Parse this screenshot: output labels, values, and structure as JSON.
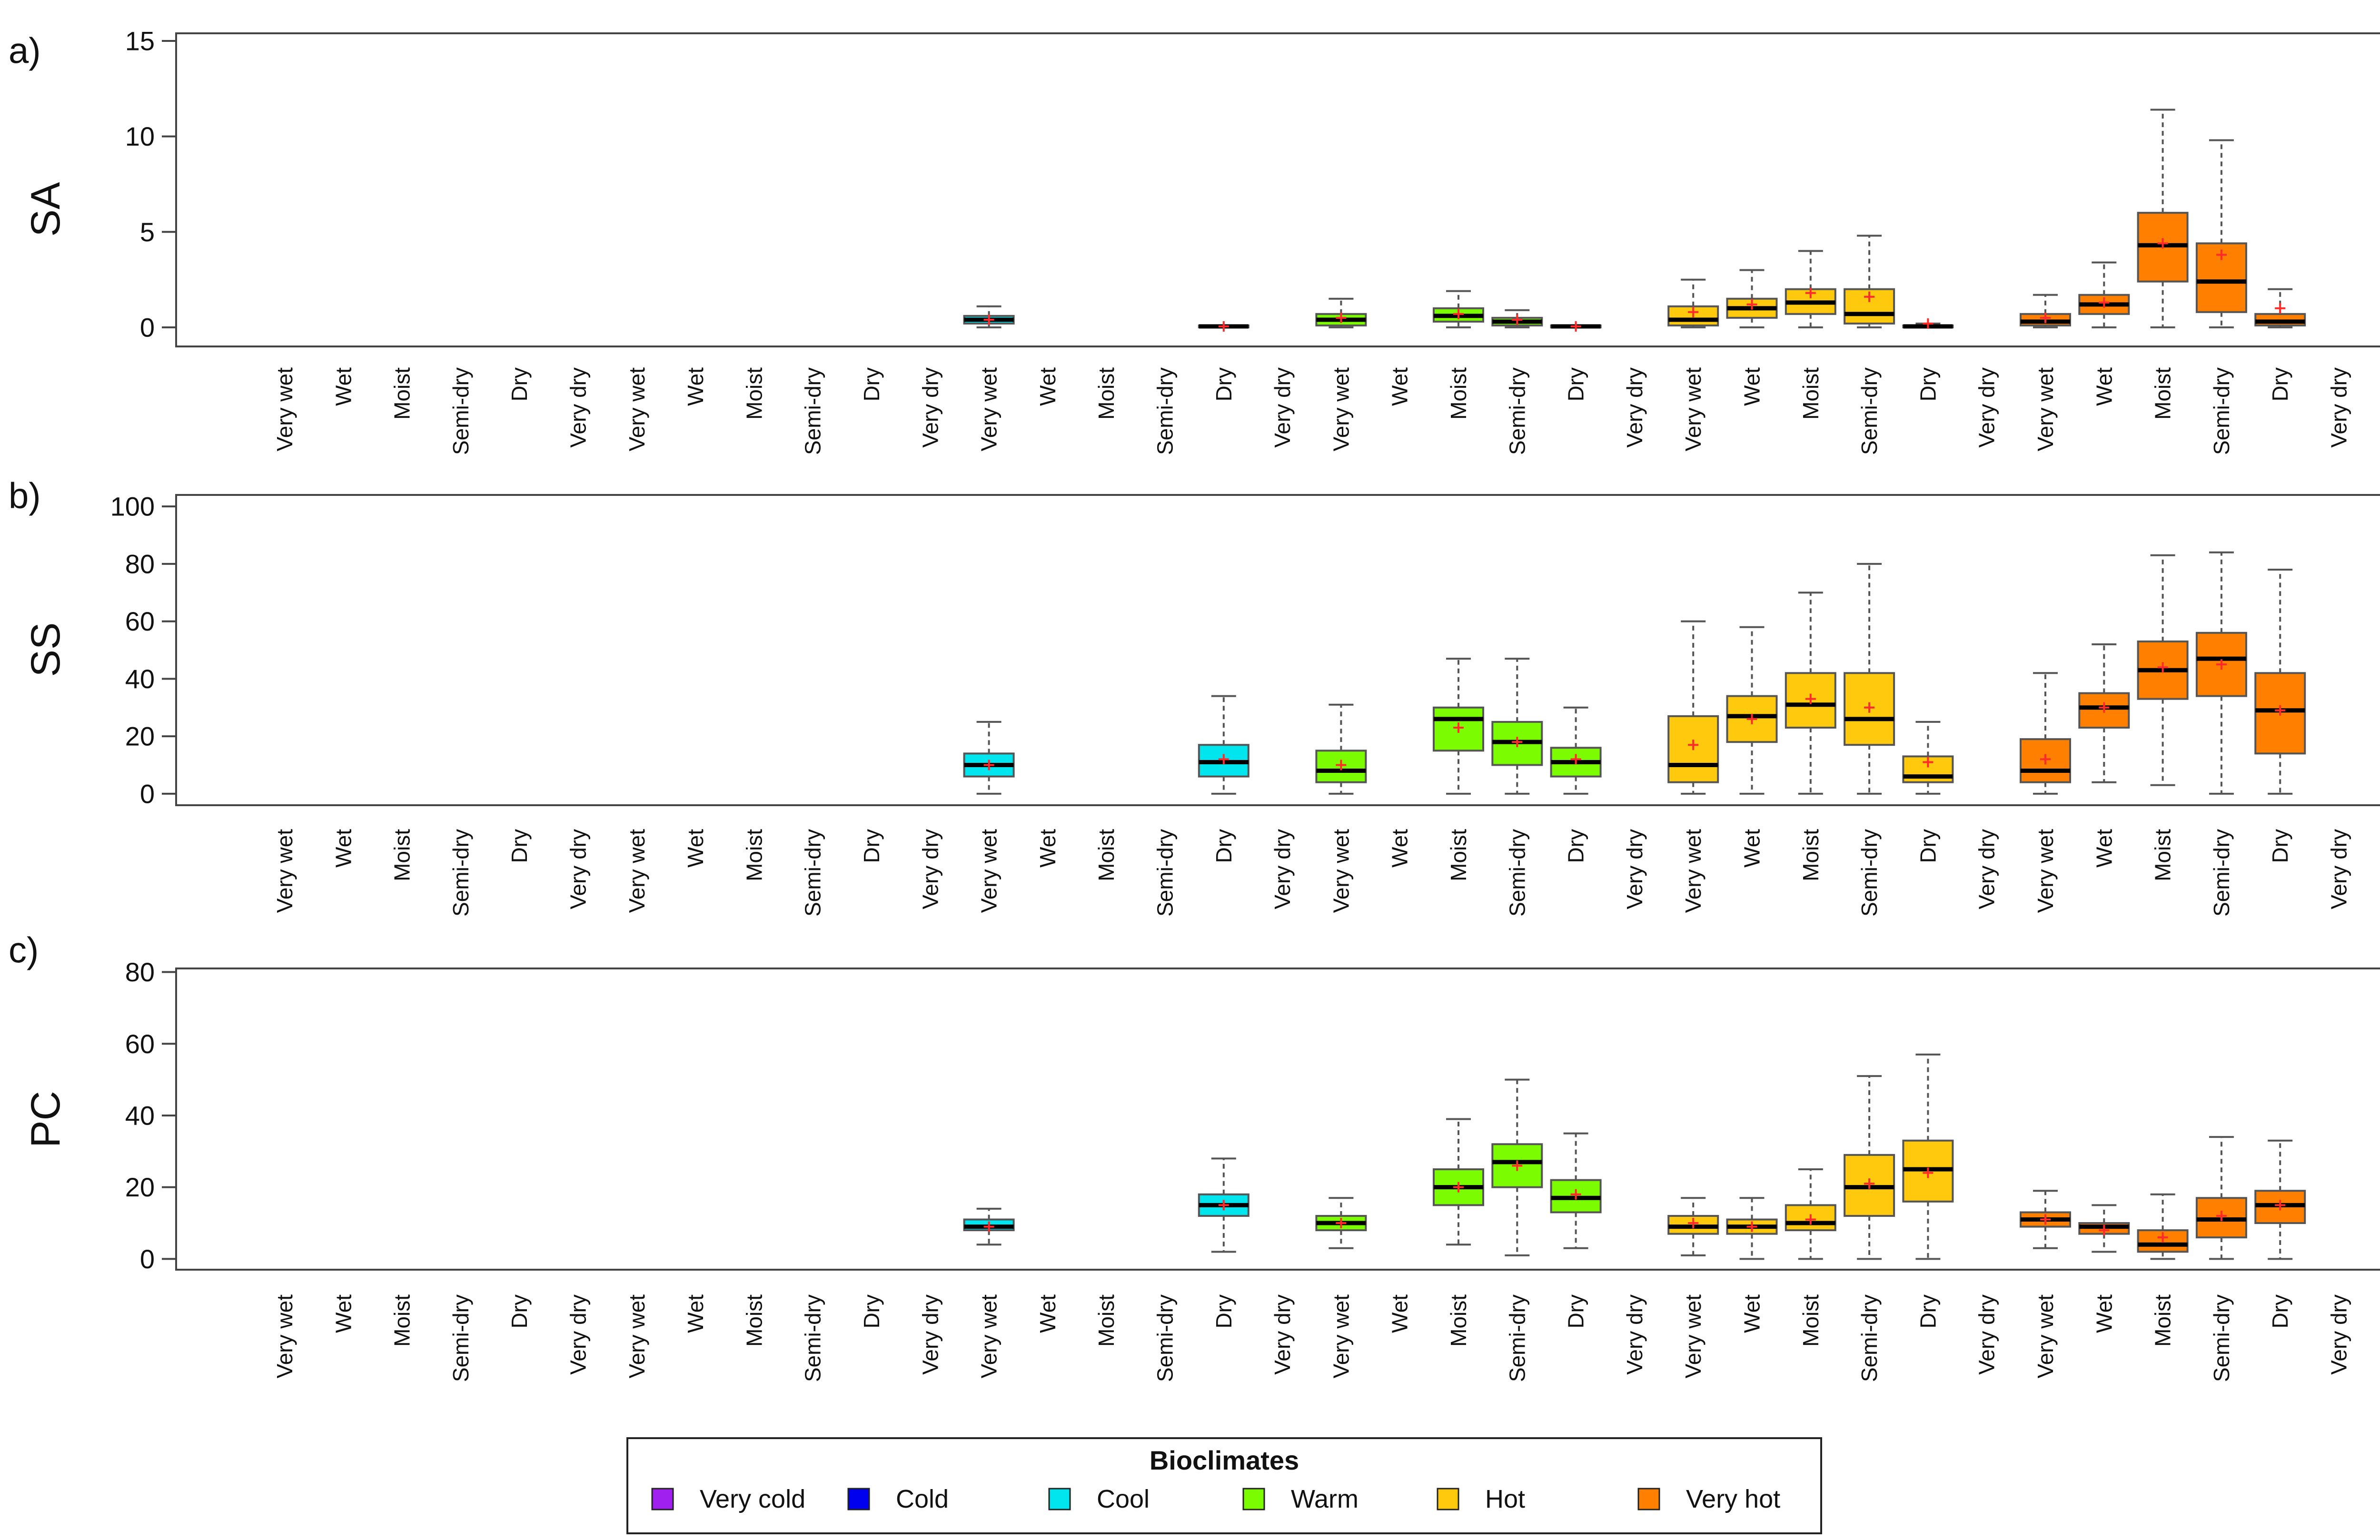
{
  "chart_data": [
    {
      "type": "box",
      "panel_label": "a)",
      "ylabel": "SA",
      "ylim": [
        -1,
        15.4
      ],
      "yticks": [
        0,
        5,
        10,
        15
      ],
      "categories": [
        "Very wet",
        "Wet",
        "Moist",
        "Semi-dry",
        "Dry",
        "Very dry",
        "Very wet",
        "Wet",
        "Moist",
        "Semi-dry",
        "Dry",
        "Very dry",
        "Very wet",
        "Wet",
        "Moist",
        "Semi-dry",
        "Dry",
        "Very dry",
        "Very wet",
        "Wet",
        "Moist",
        "Semi-dry",
        "Dry",
        "Very dry",
        "Very wet",
        "Wet",
        "Moist",
        "Semi-dry",
        "Dry",
        "Very dry",
        "Very wet",
        "Wet",
        "Moist",
        "Semi-dry",
        "Dry",
        "Very dry"
      ],
      "boxes": [
        {
          "index": 12,
          "group": "Cool",
          "min": 0,
          "q1": 0.2,
          "median": 0.4,
          "q3": 0.6,
          "max": 1.1,
          "mean": 0.4
        },
        {
          "index": 16,
          "group": "Cool",
          "min": 0,
          "q1": 0,
          "median": 0.05,
          "q3": 0.1,
          "max": 0.1,
          "mean": 0.05
        },
        {
          "index": 18,
          "group": "Warm",
          "min": 0,
          "q1": 0.1,
          "median": 0.4,
          "q3": 0.7,
          "max": 1.5,
          "mean": 0.5
        },
        {
          "index": 20,
          "group": "Warm",
          "min": 0,
          "q1": 0.3,
          "median": 0.6,
          "q3": 1.0,
          "max": 1.9,
          "mean": 0.7
        },
        {
          "index": 21,
          "group": "Warm",
          "min": 0,
          "q1": 0.1,
          "median": 0.3,
          "q3": 0.5,
          "max": 0.9,
          "mean": 0.4
        },
        {
          "index": 22,
          "group": "Warm",
          "min": 0,
          "q1": 0,
          "median": 0.05,
          "q3": 0.1,
          "max": 0.1,
          "mean": 0.05
        },
        {
          "index": 24,
          "group": "Hot",
          "min": 0,
          "q1": 0.1,
          "median": 0.4,
          "q3": 1.1,
          "max": 2.5,
          "mean": 0.8
        },
        {
          "index": 25,
          "group": "Hot",
          "min": 0,
          "q1": 0.5,
          "median": 1.0,
          "q3": 1.5,
          "max": 3.0,
          "mean": 1.2
        },
        {
          "index": 26,
          "group": "Hot",
          "min": 0,
          "q1": 0.7,
          "median": 1.3,
          "q3": 2.0,
          "max": 4.0,
          "mean": 1.8
        },
        {
          "index": 27,
          "group": "Hot",
          "min": 0,
          "q1": 0.2,
          "median": 0.7,
          "q3": 2.0,
          "max": 4.8,
          "mean": 1.6
        },
        {
          "index": 28,
          "group": "Hot",
          "min": 0,
          "q1": 0,
          "median": 0.05,
          "q3": 0.1,
          "max": 0.2,
          "mean": 0.2
        },
        {
          "index": 30,
          "group": "Very hot",
          "min": 0,
          "q1": 0.1,
          "median": 0.3,
          "q3": 0.7,
          "max": 1.7,
          "mean": 0.5
        },
        {
          "index": 31,
          "group": "Very hot",
          "min": 0,
          "q1": 0.7,
          "median": 1.2,
          "q3": 1.7,
          "max": 3.4,
          "mean": 1.3
        },
        {
          "index": 32,
          "group": "Very hot",
          "min": 0,
          "q1": 2.4,
          "median": 4.3,
          "q3": 6.0,
          "max": 11.4,
          "mean": 4.4
        },
        {
          "index": 33,
          "group": "Very hot",
          "min": 0,
          "q1": 0.8,
          "median": 2.4,
          "q3": 4.4,
          "max": 9.8,
          "mean": 3.8
        },
        {
          "index": 34,
          "group": "Very hot",
          "min": 0,
          "q1": 0.1,
          "median": 0.3,
          "q3": 0.7,
          "max": 2.0,
          "mean": 1.0
        }
      ]
    },
    {
      "type": "box",
      "panel_label": "b)",
      "ylabel": "SS",
      "ylim": [
        -4,
        104
      ],
      "yticks": [
        0,
        20,
        40,
        60,
        80,
        100
      ],
      "categories": [
        "Very wet",
        "Wet",
        "Moist",
        "Semi-dry",
        "Dry",
        "Very dry",
        "Very wet",
        "Wet",
        "Moist",
        "Semi-dry",
        "Dry",
        "Very dry",
        "Very wet",
        "Wet",
        "Moist",
        "Semi-dry",
        "Dry",
        "Very dry",
        "Very wet",
        "Wet",
        "Moist",
        "Semi-dry",
        "Dry",
        "Very dry",
        "Very wet",
        "Wet",
        "Moist",
        "Semi-dry",
        "Dry",
        "Very dry",
        "Very wet",
        "Wet",
        "Moist",
        "Semi-dry",
        "Dry",
        "Very dry"
      ],
      "boxes": [
        {
          "index": 12,
          "group": "Cool",
          "min": 0,
          "q1": 6,
          "median": 10,
          "q3": 14,
          "max": 25,
          "mean": 10
        },
        {
          "index": 16,
          "group": "Cool",
          "min": 0,
          "q1": 6,
          "median": 11,
          "q3": 17,
          "max": 34,
          "mean": 12
        },
        {
          "index": 18,
          "group": "Warm",
          "min": 0,
          "q1": 4,
          "median": 8,
          "q3": 15,
          "max": 31,
          "mean": 10
        },
        {
          "index": 20,
          "group": "Warm",
          "min": 0,
          "q1": 15,
          "median": 26,
          "q3": 30,
          "max": 47,
          "mean": 23
        },
        {
          "index": 21,
          "group": "Warm",
          "min": 0,
          "q1": 10,
          "median": 18,
          "q3": 25,
          "max": 47,
          "mean": 18
        },
        {
          "index": 22,
          "group": "Warm",
          "min": 0,
          "q1": 6,
          "median": 11,
          "q3": 16,
          "max": 30,
          "mean": 12
        },
        {
          "index": 24,
          "group": "Hot",
          "min": 0,
          "q1": 4,
          "median": 10,
          "q3": 27,
          "max": 60,
          "mean": 17
        },
        {
          "index": 25,
          "group": "Hot",
          "min": 0,
          "q1": 18,
          "median": 27,
          "q3": 34,
          "max": 58,
          "mean": 26
        },
        {
          "index": 26,
          "group": "Hot",
          "min": 0,
          "q1": 23,
          "median": 31,
          "q3": 42,
          "max": 70,
          "mean": 33
        },
        {
          "index": 27,
          "group": "Hot",
          "min": 0,
          "q1": 17,
          "median": 26,
          "q3": 42,
          "max": 80,
          "mean": 30
        },
        {
          "index": 28,
          "group": "Hot",
          "min": 0,
          "q1": 4,
          "median": 6,
          "q3": 13,
          "max": 25,
          "mean": 11
        },
        {
          "index": 30,
          "group": "Very hot",
          "min": 0,
          "q1": 4,
          "median": 8,
          "q3": 19,
          "max": 42,
          "mean": 12
        },
        {
          "index": 31,
          "group": "Very hot",
          "min": 4,
          "q1": 23,
          "median": 30,
          "q3": 35,
          "max": 52,
          "mean": 30
        },
        {
          "index": 32,
          "group": "Very hot",
          "min": 3,
          "q1": 33,
          "median": 43,
          "q3": 53,
          "max": 83,
          "mean": 44
        },
        {
          "index": 33,
          "group": "Very hot",
          "min": 0,
          "q1": 34,
          "median": 47,
          "q3": 56,
          "max": 84,
          "mean": 45
        },
        {
          "index": 34,
          "group": "Very hot",
          "min": 0,
          "q1": 14,
          "median": 29,
          "q3": 42,
          "max": 78,
          "mean": 29
        }
      ]
    },
    {
      "type": "box",
      "panel_label": "c)",
      "ylabel": "PC",
      "ylim": [
        -3,
        81
      ],
      "yticks": [
        0,
        20,
        40,
        60,
        80
      ],
      "categories": [
        "Very wet",
        "Wet",
        "Moist",
        "Semi-dry",
        "Dry",
        "Very dry",
        "Very wet",
        "Wet",
        "Moist",
        "Semi-dry",
        "Dry",
        "Very dry",
        "Very wet",
        "Wet",
        "Moist",
        "Semi-dry",
        "Dry",
        "Very dry",
        "Very wet",
        "Wet",
        "Moist",
        "Semi-dry",
        "Dry",
        "Very dry",
        "Very wet",
        "Wet",
        "Moist",
        "Semi-dry",
        "Dry",
        "Very dry",
        "Very wet",
        "Wet",
        "Moist",
        "Semi-dry",
        "Dry",
        "Very dry"
      ],
      "boxes": [
        {
          "index": 12,
          "group": "Cool",
          "min": 4,
          "q1": 8,
          "median": 9,
          "q3": 11,
          "max": 14,
          "mean": 9
        },
        {
          "index": 16,
          "group": "Cool",
          "min": 2,
          "q1": 12,
          "median": 15,
          "q3": 18,
          "max": 28,
          "mean": 15
        },
        {
          "index": 18,
          "group": "Warm",
          "min": 3,
          "q1": 8,
          "median": 10,
          "q3": 12,
          "max": 17,
          "mean": 10
        },
        {
          "index": 20,
          "group": "Warm",
          "min": 4,
          "q1": 15,
          "median": 20,
          "q3": 25,
          "max": 39,
          "mean": 20
        },
        {
          "index": 21,
          "group": "Warm",
          "min": 1,
          "q1": 20,
          "median": 27,
          "q3": 32,
          "max": 50,
          "mean": 26
        },
        {
          "index": 22,
          "group": "Warm",
          "min": 3,
          "q1": 13,
          "median": 17,
          "q3": 22,
          "max": 35,
          "mean": 18
        },
        {
          "index": 24,
          "group": "Hot",
          "min": 1,
          "q1": 7,
          "median": 9,
          "q3": 12,
          "max": 17,
          "mean": 10
        },
        {
          "index": 25,
          "group": "Hot",
          "min": 0,
          "q1": 7,
          "median": 9,
          "q3": 11,
          "max": 17,
          "mean": 9
        },
        {
          "index": 26,
          "group": "Hot",
          "min": 0,
          "q1": 8,
          "median": 10,
          "q3": 15,
          "max": 25,
          "mean": 11
        },
        {
          "index": 27,
          "group": "Hot",
          "min": 0,
          "q1": 12,
          "median": 20,
          "q3": 29,
          "max": 51,
          "mean": 21
        },
        {
          "index": 28,
          "group": "Hot",
          "min": 0,
          "q1": 16,
          "median": 25,
          "q3": 33,
          "max": 57,
          "mean": 24
        },
        {
          "index": 30,
          "group": "Very hot",
          "min": 3,
          "q1": 9,
          "median": 11,
          "q3": 13,
          "max": 19,
          "mean": 11
        },
        {
          "index": 31,
          "group": "Very hot",
          "min": 2,
          "q1": 7,
          "median": 9,
          "q3": 10,
          "max": 15,
          "mean": 8
        },
        {
          "index": 32,
          "group": "Very hot",
          "min": 0,
          "q1": 2,
          "median": 4,
          "q3": 8,
          "max": 18,
          "mean": 6
        },
        {
          "index": 33,
          "group": "Very hot",
          "min": 0,
          "q1": 6,
          "median": 11,
          "q3": 17,
          "max": 34,
          "mean": 12
        },
        {
          "index": 34,
          "group": "Very hot",
          "min": 0,
          "q1": 10,
          "median": 15,
          "q3": 19,
          "max": 33,
          "mean": 15
        }
      ]
    }
  ],
  "legend": {
    "title": "Bioclimates",
    "items": [
      {
        "label": "Very cold",
        "color": "#a020f0"
      },
      {
        "label": "Cold",
        "color": "#0000ee"
      },
      {
        "label": "Cool",
        "color": "#00e5ee"
      },
      {
        "label": "Warm",
        "color": "#7cfc00"
      },
      {
        "label": "Hot",
        "color": "#ffc90e"
      },
      {
        "label": "Very hot",
        "color": "#ff8000"
      }
    ]
  },
  "colors": {
    "mean_marker": "#ff2a2a",
    "median_line": "#000000",
    "frame": "#444444"
  }
}
